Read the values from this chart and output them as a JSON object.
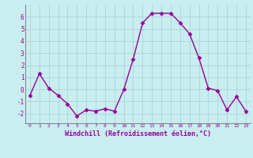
{
  "x": [
    0,
    1,
    2,
    3,
    4,
    5,
    6,
    7,
    8,
    9,
    10,
    11,
    12,
    13,
    14,
    15,
    16,
    17,
    18,
    19,
    20,
    21,
    22,
    23
  ],
  "y": [
    -0.5,
    1.3,
    0.1,
    -0.5,
    -1.2,
    -2.2,
    -1.7,
    -1.8,
    -1.6,
    -1.8,
    0.0,
    2.5,
    5.5,
    6.3,
    6.3,
    6.3,
    5.5,
    4.6,
    2.6,
    0.1,
    -0.1,
    -1.7,
    -0.6,
    -1.8
  ],
  "line_color": "#990099",
  "marker": "D",
  "marker_size": 2.5,
  "bg_color": "#c8eef0",
  "grid_color": "#aad4d8",
  "xlabel": "Windchill (Refroidissement éolien,°C)",
  "xlabel_color": "#990099",
  "tick_color": "#990099",
  "spine_color": "#888888",
  "ylim": [
    -2.8,
    7.0
  ],
  "yticks": [
    -2,
    -1,
    0,
    1,
    2,
    3,
    4,
    5,
    6
  ],
  "xticks": [
    0,
    1,
    2,
    3,
    4,
    5,
    6,
    7,
    8,
    9,
    10,
    11,
    12,
    13,
    14,
    15,
    16,
    17,
    18,
    19,
    20,
    21,
    22,
    23
  ],
  "xlim": [
    -0.5,
    23.5
  ]
}
